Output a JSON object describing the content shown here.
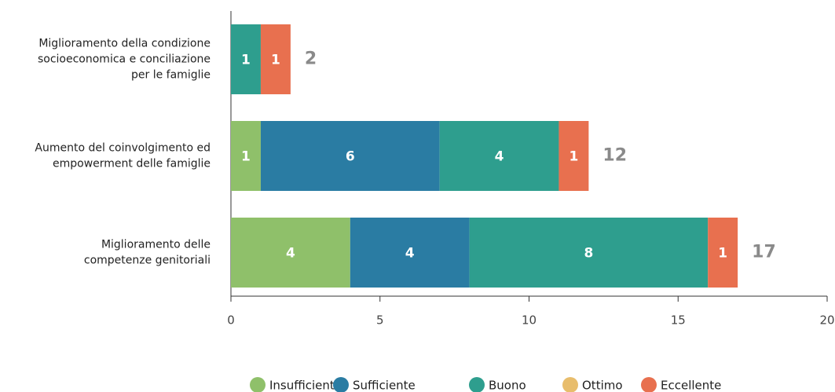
{
  "chart_data": {
    "type": "stacked-barh",
    "categories": [
      [
        "Miglioramento della condizione",
        "socioeconomica e conciliazione",
        "per le famiglie"
      ],
      [
        "Aumento del coinvolgimento ed",
        "empowerment delle famiglie"
      ],
      [
        "Miglioramento delle",
        "competenze genitoriali"
      ]
    ],
    "series": [
      {
        "name": "Insufficiente",
        "color": "#8fc06a",
        "values": [
          0,
          1,
          4
        ]
      },
      {
        "name": "Sufficiente",
        "color": "#2a7ca3",
        "values": [
          0,
          6,
          4
        ]
      },
      {
        "name": "Buono",
        "color": "#2e9e8e",
        "values": [
          1,
          4,
          8
        ]
      },
      {
        "name": "Ottimo",
        "color": "#e8bd6c",
        "values": [
          0,
          0,
          0
        ]
      },
      {
        "name": "Eccellente",
        "color": "#e8704f",
        "values": [
          1,
          1,
          1
        ]
      }
    ],
    "totals": [
      2,
      12,
      17
    ],
    "xlim": [
      0,
      20
    ],
    "xticks": [
      0,
      5,
      10,
      15,
      20
    ],
    "grid": false,
    "legend": "bottom"
  }
}
